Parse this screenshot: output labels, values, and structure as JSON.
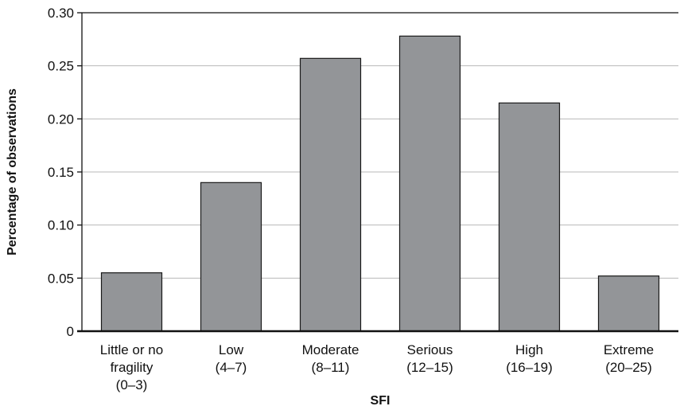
{
  "chart_data": {
    "type": "bar",
    "title": "",
    "xlabel": "SFI",
    "ylabel": "Percentage of observations",
    "ylim": [
      0,
      0.3
    ],
    "yticks": [
      "0",
      "0.05",
      "0.10",
      "0.15",
      "0.20",
      "0.25",
      "0.30"
    ],
    "ytick_values": [
      0,
      0.05,
      0.1,
      0.15,
      0.2,
      0.25,
      0.3
    ],
    "grid": true,
    "legend": "none",
    "bar_color": "#939598",
    "categories": [
      [
        "Little or no",
        "fragility",
        "(0–3)"
      ],
      [
        "Low",
        "(4–7)"
      ],
      [
        "Moderate",
        "(8–11)"
      ],
      [
        "Serious",
        "(12–15)"
      ],
      [
        "High",
        "(16–19)"
      ],
      [
        "Extreme",
        "(20–25)"
      ]
    ],
    "values": [
      0.055,
      0.14,
      0.257,
      0.278,
      0.215,
      0.052
    ]
  }
}
